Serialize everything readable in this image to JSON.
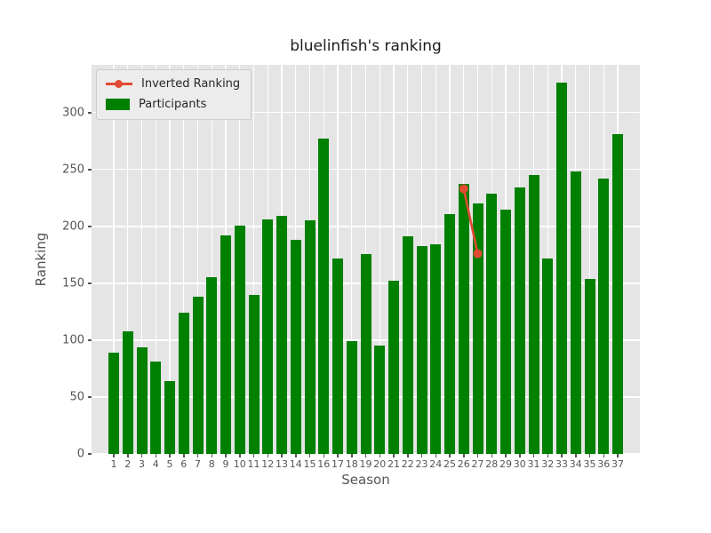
{
  "title": "bluelinfish's ranking",
  "chart_data": {
    "type": "bar",
    "title": "bluelinfish's ranking",
    "xlabel": "Season",
    "ylabel": "Ranking",
    "categories": [
      1,
      2,
      3,
      4,
      5,
      6,
      7,
      8,
      9,
      10,
      11,
      12,
      13,
      14,
      15,
      16,
      17,
      18,
      19,
      20,
      21,
      22,
      23,
      24,
      25,
      26,
      27,
      28,
      29,
      30,
      31,
      32,
      33,
      34,
      35,
      36,
      37
    ],
    "series": [
      {
        "name": "Inverted Ranking",
        "kind": "line",
        "color": "#E24A33",
        "points": [
          [
            26,
            233
          ],
          [
            27,
            176
          ]
        ]
      },
      {
        "name": "Participants",
        "kind": "bar",
        "color": "#008000",
        "values": [
          89,
          108,
          94,
          81,
          64,
          124,
          138,
          155,
          192,
          201,
          140,
          206,
          209,
          188,
          205,
          277,
          172,
          99,
          176,
          95,
          152,
          191,
          183,
          184,
          211,
          237,
          220,
          229,
          215,
          234,
          245,
          172,
          326,
          248,
          154,
          242,
          281
        ]
      }
    ],
    "ylim": [
      0,
      342
    ],
    "yticks": [
      0,
      50,
      100,
      150,
      200,
      250,
      300
    ],
    "grid": true,
    "legend_position": "upper-left",
    "colors": {
      "plot_background": "#E5E5E5",
      "figure_background": "#FFFFFF",
      "gridline": "#FFFFFF",
      "tick_text": "#555555",
      "axis_label_text": "#555555",
      "title_text": "#1c1c1c"
    }
  }
}
